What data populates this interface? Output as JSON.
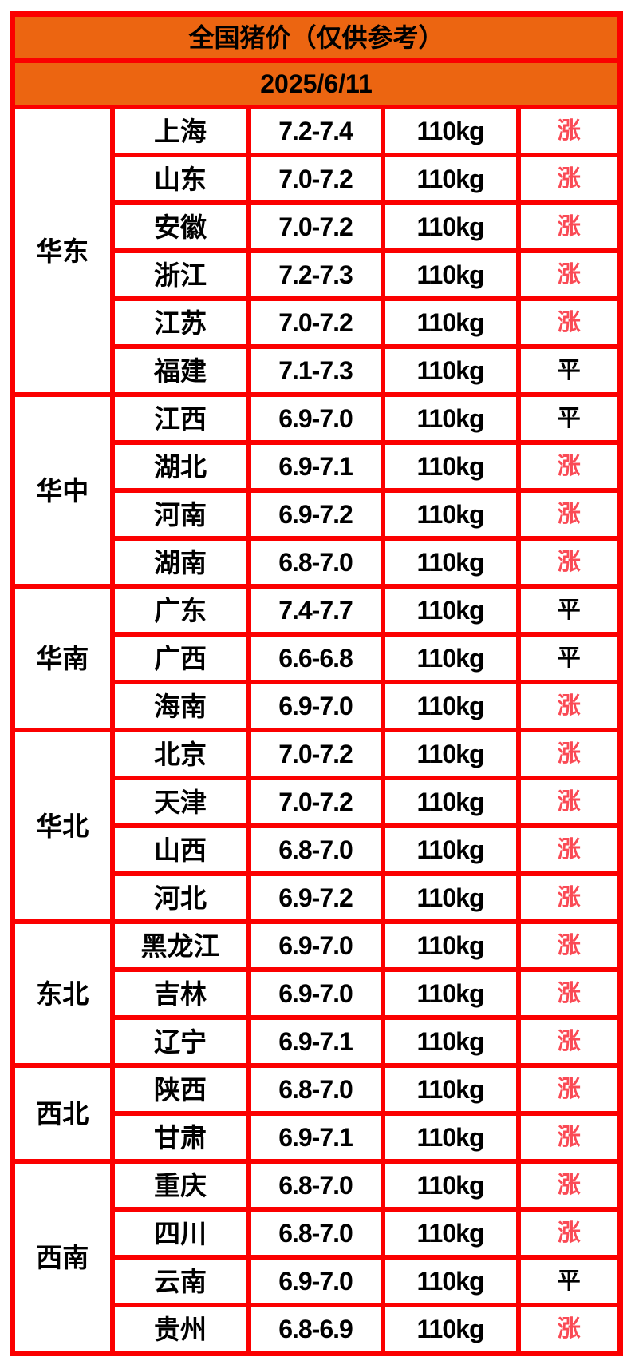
{
  "title": "全国猪价（仅供参考）",
  "date": "2025/6/11",
  "colors": {
    "header_bg": "#EC6511",
    "border": "#FB0000",
    "up_text": "#FA4A55",
    "flat_text": "#000000"
  },
  "chart_data": {
    "type": "table",
    "title": "全国猪价（仅供参考）",
    "date": "2025/6/11",
    "regions": [
      {
        "name": "华东",
        "rows": [
          {
            "province": "上海",
            "price": "7.2-7.4",
            "weight": "110kg",
            "status": "涨",
            "trend": "up"
          },
          {
            "province": "山东",
            "price": "7.0-7.2",
            "weight": "110kg",
            "status": "涨",
            "trend": "up"
          },
          {
            "province": "安徽",
            "price": "7.0-7.2",
            "weight": "110kg",
            "status": "涨",
            "trend": "up"
          },
          {
            "province": "浙江",
            "price": "7.2-7.3",
            "weight": "110kg",
            "status": "涨",
            "trend": "up"
          },
          {
            "province": "江苏",
            "price": "7.0-7.2",
            "weight": "110kg",
            "status": "涨",
            "trend": "up"
          },
          {
            "province": "福建",
            "price": "7.1-7.3",
            "weight": "110kg",
            "status": "平",
            "trend": "flat"
          }
        ]
      },
      {
        "name": "华中",
        "rows": [
          {
            "province": "江西",
            "price": "6.9-7.0",
            "weight": "110kg",
            "status": "平",
            "trend": "flat"
          },
          {
            "province": "湖北",
            "price": "6.9-7.1",
            "weight": "110kg",
            "status": "涨",
            "trend": "up"
          },
          {
            "province": "河南",
            "price": "6.9-7.2",
            "weight": "110kg",
            "status": "涨",
            "trend": "up"
          },
          {
            "province": "湖南",
            "price": "6.8-7.0",
            "weight": "110kg",
            "status": "涨",
            "trend": "up"
          }
        ]
      },
      {
        "name": "华南",
        "rows": [
          {
            "province": "广东",
            "price": "7.4-7.7",
            "weight": "110kg",
            "status": "平",
            "trend": "flat"
          },
          {
            "province": "广西",
            "price": "6.6-6.8",
            "weight": "110kg",
            "status": "平",
            "trend": "flat"
          },
          {
            "province": "海南",
            "price": "6.9-7.0",
            "weight": "110kg",
            "status": "涨",
            "trend": "up"
          }
        ]
      },
      {
        "name": "华北",
        "rows": [
          {
            "province": "北京",
            "price": "7.0-7.2",
            "weight": "110kg",
            "status": "涨",
            "trend": "up"
          },
          {
            "province": "天津",
            "price": "7.0-7.2",
            "weight": "110kg",
            "status": "涨",
            "trend": "up"
          },
          {
            "province": "山西",
            "price": "6.8-7.0",
            "weight": "110kg",
            "status": "涨",
            "trend": "up"
          },
          {
            "province": "河北",
            "price": "6.9-7.2",
            "weight": "110kg",
            "status": "涨",
            "trend": "up"
          }
        ]
      },
      {
        "name": "东北",
        "rows": [
          {
            "province": "黑龙江",
            "price": "6.9-7.0",
            "weight": "110kg",
            "status": "涨",
            "trend": "up"
          },
          {
            "province": "吉林",
            "price": "6.9-7.0",
            "weight": "110kg",
            "status": "涨",
            "trend": "up"
          },
          {
            "province": "辽宁",
            "price": "6.9-7.1",
            "weight": "110kg",
            "status": "涨",
            "trend": "up"
          }
        ]
      },
      {
        "name": "西北",
        "rows": [
          {
            "province": "陕西",
            "price": "6.8-7.0",
            "weight": "110kg",
            "status": "涨",
            "trend": "up"
          },
          {
            "province": "甘肃",
            "price": "6.9-7.1",
            "weight": "110kg",
            "status": "涨",
            "trend": "up"
          }
        ]
      },
      {
        "name": "西南",
        "rows": [
          {
            "province": "重庆",
            "price": "6.8-7.0",
            "weight": "110kg",
            "status": "涨",
            "trend": "up"
          },
          {
            "province": "四川",
            "price": "6.8-7.0",
            "weight": "110kg",
            "status": "涨",
            "trend": "up"
          },
          {
            "province": "云南",
            "price": "6.9-7.0",
            "weight": "110kg",
            "status": "平",
            "trend": "flat"
          },
          {
            "province": "贵州",
            "price": "6.8-6.9",
            "weight": "110kg",
            "status": "涨",
            "trend": "up"
          }
        ]
      }
    ]
  }
}
